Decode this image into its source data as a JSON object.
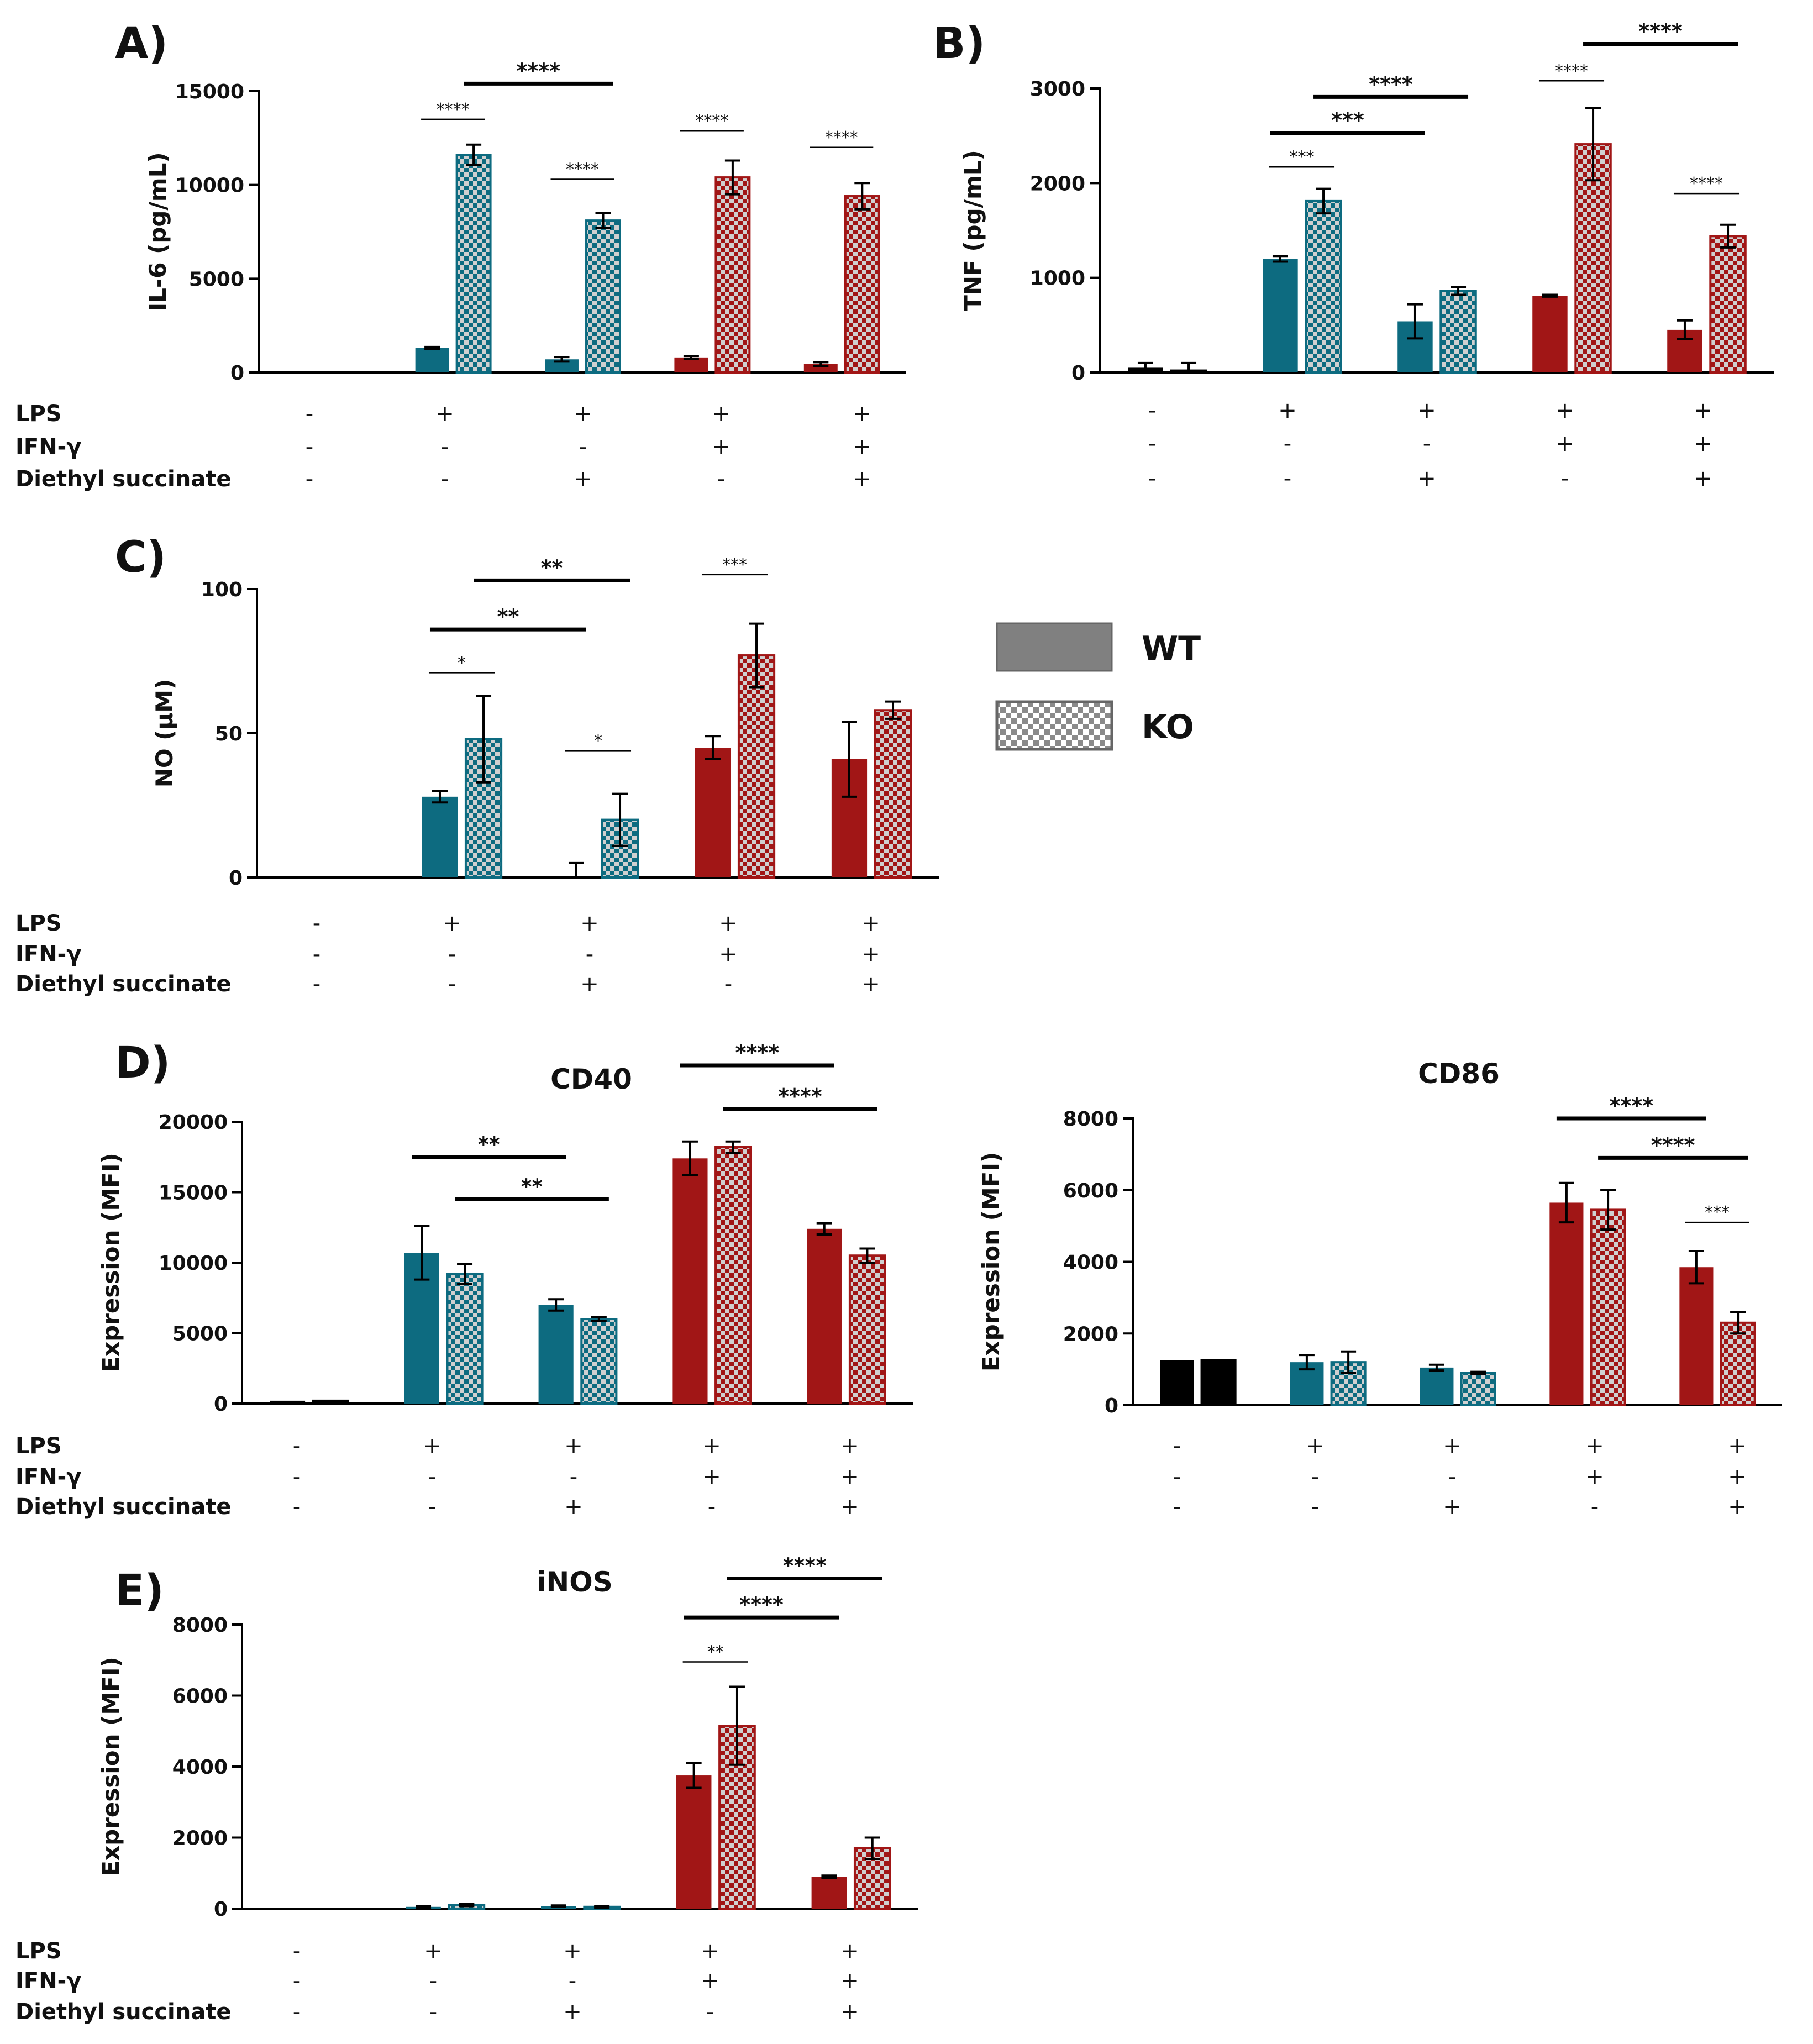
{
  "legend": [
    {
      "label": "WT",
      "pattern": "solid"
    },
    {
      "label": "KO",
      "pattern": "checker"
    }
  ],
  "conditions": {
    "labels": [
      "LPS",
      "IFN-γ",
      "Diethyl succinate"
    ],
    "groups": [
      [
        "-",
        "-",
        "-"
      ],
      [
        "+",
        "-",
        "-"
      ],
      [
        "+",
        "-",
        "+"
      ],
      [
        "+",
        "+",
        "-"
      ],
      [
        "+",
        "+",
        "+"
      ]
    ]
  },
  "colors": {
    "untreated": "#000000",
    "lps": "#0d6b80",
    "lps_ifn": "#a11616",
    "gray": "#808080",
    "grid": "#000000"
  },
  "chart_data": [
    {
      "id": "A",
      "letter": "A)",
      "type": "bar",
      "title": "",
      "ylabel": "IL-6 (pg/mL)",
      "ylim": [
        0,
        15000
      ],
      "yticks": [
        "0",
        "5000",
        "10000",
        "15000"
      ],
      "series": [
        {
          "name": "WT",
          "values": [
            0,
            1300,
            700,
            800,
            450
          ],
          "errors": [
            0,
            60,
            120,
            80,
            100
          ]
        },
        {
          "name": "KO",
          "values": [
            0,
            11600,
            8100,
            10400,
            9400
          ],
          "errors": [
            0,
            550,
            400,
            900,
            700
          ]
        }
      ],
      "annotations": [
        {
          "label": "****",
          "g1": 1,
          "s1": 0,
          "g2": 1,
          "s2": 1,
          "y": 13500,
          "size": "small"
        },
        {
          "label": "****",
          "g1": 1,
          "s1": 1,
          "g2": 2,
          "s2": 1,
          "y": 15400,
          "size": "big"
        },
        {
          "label": "****",
          "g1": 2,
          "s1": 0,
          "g2": 2,
          "s2": 1,
          "y": 10300,
          "size": "small"
        },
        {
          "label": "****",
          "g1": 3,
          "s1": 0,
          "g2": 3,
          "s2": 1,
          "y": 12900,
          "size": "small"
        },
        {
          "label": "****",
          "g1": 4,
          "s1": 0,
          "g2": 4,
          "s2": 1,
          "y": 12000,
          "size": "small"
        }
      ]
    },
    {
      "id": "B",
      "letter": "B)",
      "type": "bar",
      "title": "",
      "ylabel": "TNF (pg/mL)",
      "ylim": [
        0,
        3000
      ],
      "yticks": [
        "0",
        "1000",
        "2000",
        "3000"
      ],
      "series": [
        {
          "name": "WT",
          "values": [
            50,
            1200,
            540,
            810,
            450
          ],
          "errors": [
            50,
            30,
            180,
            10,
            100
          ]
        },
        {
          "name": "KO",
          "values": [
            20,
            1810,
            860,
            2410,
            1440
          ],
          "errors": [
            80,
            130,
            40,
            380,
            120
          ]
        }
      ],
      "annotations": [
        {
          "label": "***",
          "g1": 1,
          "s1": 0,
          "g2": 1,
          "s2": 1,
          "y": 2170,
          "size": "small"
        },
        {
          "label": "***",
          "g1": 1,
          "s1": 0,
          "g2": 2,
          "s2": 0,
          "y": 2530,
          "size": "big"
        },
        {
          "label": "****",
          "g1": 1,
          "s1": 1,
          "g2": 2,
          "s2": 1,
          "y": 2910,
          "size": "big"
        },
        {
          "label": "****",
          "g1": 3,
          "s1": 0,
          "g2": 3,
          "s2": 1,
          "y": 3080,
          "size": "small"
        },
        {
          "label": "****",
          "g1": 3,
          "s1": 1,
          "g2": 4,
          "s2": 1,
          "y": 3470,
          "size": "big"
        },
        {
          "label": "****",
          "g1": 4,
          "s1": 0,
          "g2": 4,
          "s2": 1,
          "y": 1890,
          "size": "small"
        }
      ]
    },
    {
      "id": "C",
      "letter": "C)",
      "type": "bar",
      "title": "",
      "ylabel": "NO (µM)",
      "ylim": [
        0,
        100
      ],
      "yticks": [
        "0",
        "50",
        "100"
      ],
      "series": [
        {
          "name": "WT",
          "values": [
            0,
            28,
            0,
            45,
            41
          ],
          "errors": [
            0,
            2,
            5,
            4,
            13
          ]
        },
        {
          "name": "KO",
          "values": [
            0,
            48,
            20,
            77,
            58
          ],
          "errors": [
            0,
            15,
            9,
            11,
            3
          ]
        }
      ],
      "annotations": [
        {
          "label": "*",
          "g1": 1,
          "s1": 0,
          "g2": 1,
          "s2": 1,
          "y": 71,
          "size": "small"
        },
        {
          "label": "**",
          "g1": 1,
          "s1": 0,
          "g2": 2,
          "s2": 0,
          "y": 86,
          "size": "big"
        },
        {
          "label": "**",
          "g1": 1,
          "s1": 1,
          "g2": 2,
          "s2": 1,
          "y": 103,
          "size": "big"
        },
        {
          "label": "*",
          "g1": 2,
          "s1": 0,
          "g2": 2,
          "s2": 1,
          "y": 44,
          "size": "small"
        },
        {
          "label": "***",
          "g1": 3,
          "s1": 0,
          "g2": 3,
          "s2": 1,
          "y": 105,
          "size": "small"
        }
      ]
    },
    {
      "id": "D1",
      "letter": "D)",
      "type": "bar",
      "title": "CD40",
      "ylabel": "Expression (MFI)",
      "ylim": [
        0,
        20000
      ],
      "yticks": [
        "0",
        "5000",
        "10000",
        "15000",
        "20000"
      ],
      "series": [
        {
          "name": "WT",
          "values": [
            200,
            10700,
            7000,
            17400,
            12400
          ],
          "errors": [
            0,
            1900,
            400,
            1200,
            400
          ]
        },
        {
          "name": "KO",
          "values": [
            200,
            9200,
            6000,
            18200,
            10500
          ],
          "errors": [
            0,
            700,
            150,
            400,
            500
          ]
        }
      ],
      "annotations": [
        {
          "label": "**",
          "g1": 1,
          "s1": 0,
          "g2": 2,
          "s2": 0,
          "y": 17500,
          "size": "big"
        },
        {
          "label": "**",
          "g1": 1,
          "s1": 1,
          "g2": 2,
          "s2": 1,
          "y": 14500,
          "size": "big"
        },
        {
          "label": "****",
          "g1": 3,
          "s1": 0,
          "g2": 4,
          "s2": 0,
          "y": 24000,
          "size": "big"
        },
        {
          "label": "****",
          "g1": 3,
          "s1": 1,
          "g2": 4,
          "s2": 1,
          "y": 20900,
          "size": "big"
        }
      ]
    },
    {
      "id": "D2",
      "letter": "",
      "type": "bar",
      "title": "CD86",
      "ylabel": "Expression (MFI)",
      "ylim": [
        0,
        8000
      ],
      "yticks": [
        "0",
        "2000",
        "4000",
        "6000",
        "8000"
      ],
      "series": [
        {
          "name": "WT",
          "values": [
            1250,
            1200,
            1050,
            5650,
            3850
          ],
          "errors": [
            0,
            200,
            80,
            550,
            450
          ]
        },
        {
          "name": "KO",
          "values": [
            1250,
            1200,
            900,
            5450,
            2300
          ],
          "errors": [
            0,
            300,
            30,
            550,
            300
          ]
        }
      ],
      "annotations": [
        {
          "label": "****",
          "g1": 3,
          "s1": 0,
          "g2": 4,
          "s2": 0,
          "y": 8000,
          "size": "big"
        },
        {
          "label": "****",
          "g1": 3,
          "s1": 1,
          "g2": 4,
          "s2": 1,
          "y": 6900,
          "size": "big"
        },
        {
          "label": "***",
          "g1": 4,
          "s1": 0,
          "g2": 4,
          "s2": 1,
          "y": 5100,
          "size": "small"
        }
      ]
    },
    {
      "id": "E",
      "letter": "E)",
      "type": "bar",
      "title": "iNOS",
      "ylabel": "Expression (MFI)",
      "ylim": [
        0,
        8000
      ],
      "yticks": [
        "0",
        "2000",
        "4000",
        "6000",
        "8000"
      ],
      "series": [
        {
          "name": "WT",
          "values": [
            0,
            50,
            70,
            3750,
            900
          ],
          "errors": [
            0,
            20,
            20,
            350,
            30
          ]
        },
        {
          "name": "KO",
          "values": [
            0,
            100,
            50,
            5150,
            1700
          ],
          "errors": [
            0,
            30,
            20,
            1100,
            300
          ]
        }
      ],
      "annotations": [
        {
          "label": "**",
          "g1": 3,
          "s1": 0,
          "g2": 3,
          "s2": 1,
          "y": 6950,
          "size": "small"
        },
        {
          "label": "****",
          "g1": 3,
          "s1": 0,
          "g2": 4,
          "s2": 0,
          "y": 8200,
          "size": "big"
        },
        {
          "label": "****",
          "g1": 3,
          "s1": 1,
          "g2": 4,
          "s2": 1,
          "y": 9300,
          "size": "big"
        }
      ]
    }
  ]
}
